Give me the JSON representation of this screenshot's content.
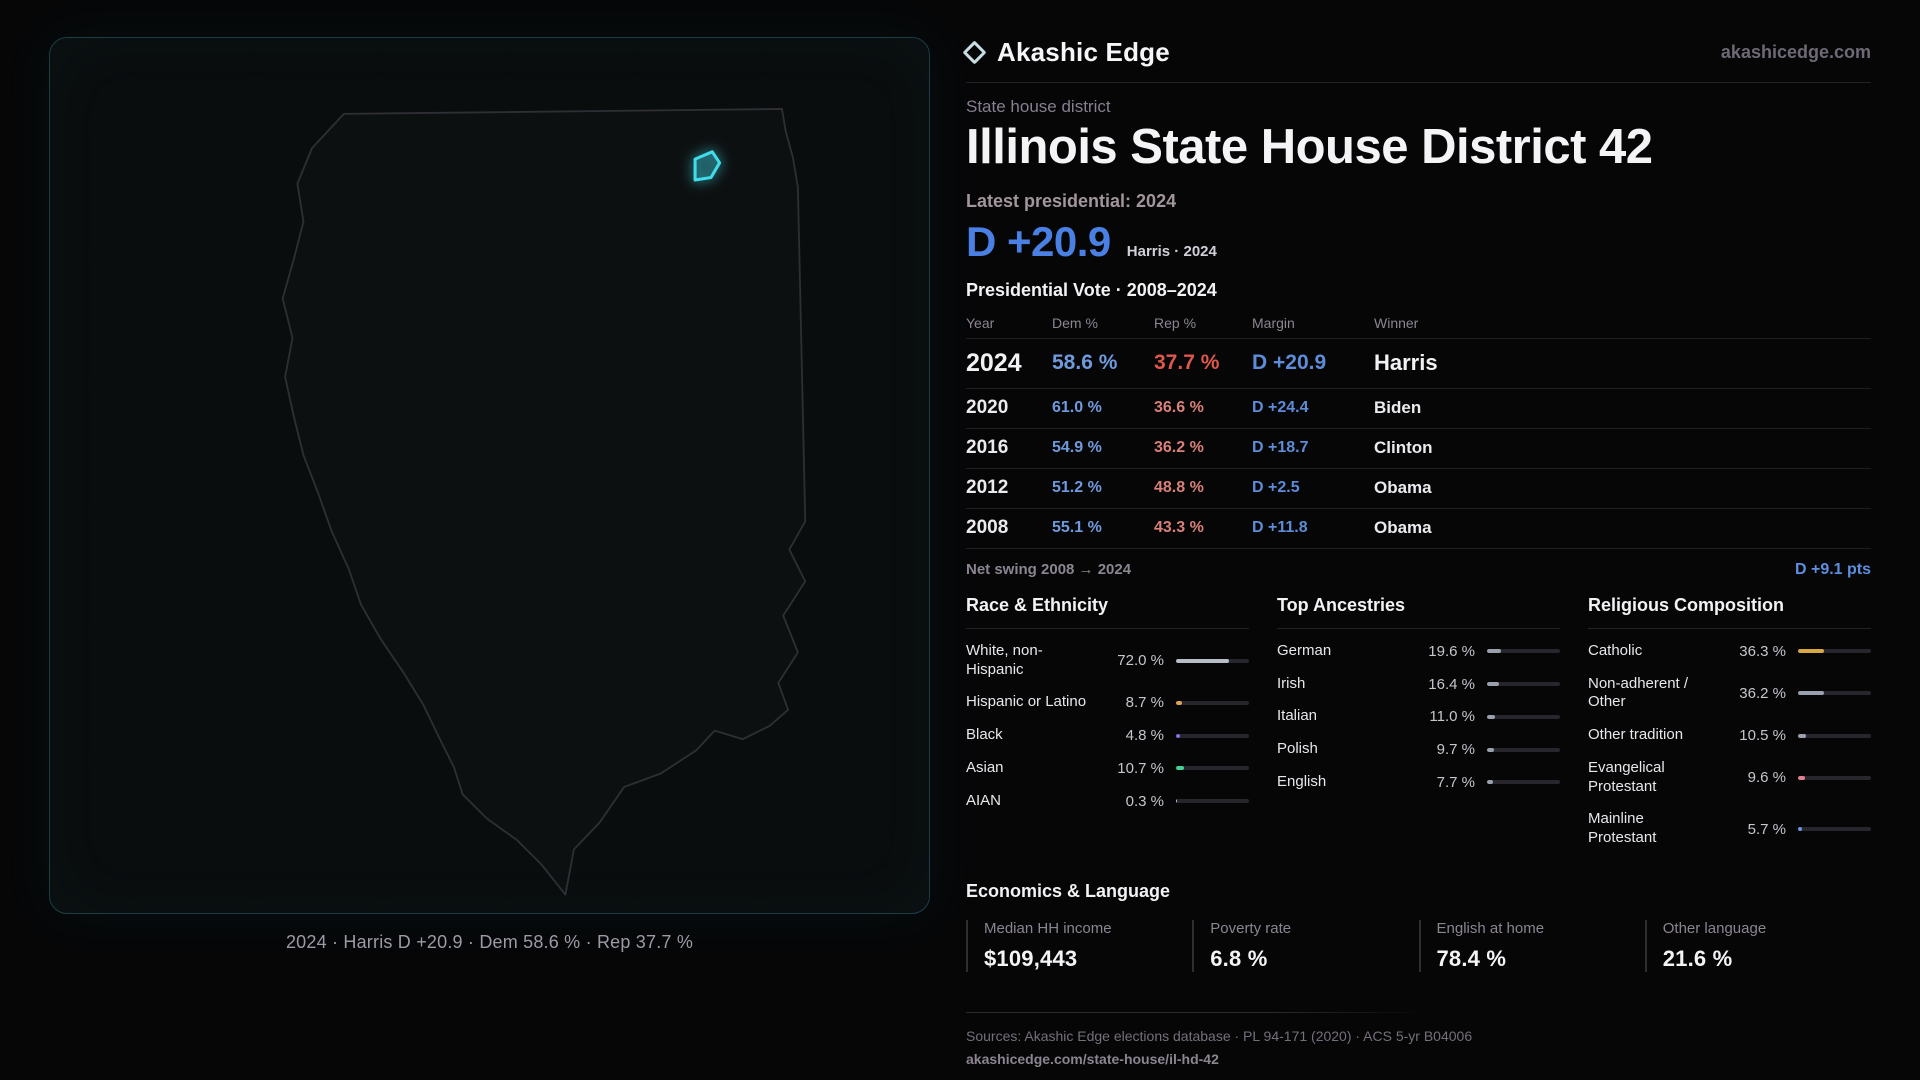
{
  "brand": {
    "name": "Akashic Edge",
    "domain_link": "akashicedge.com"
  },
  "page": {
    "kicker": "State house district",
    "title": "Illinois State House District 42",
    "latest_label": "Latest presidential: 2024",
    "headline": {
      "margin": "D +20.9",
      "sub": "Harris · 2024"
    }
  },
  "map": {
    "caption": "2024 · Harris D +20.9 · Dem 58.6 % · Rep 37.7 %"
  },
  "vote": {
    "title": "Presidential Vote · 2008–2024",
    "columns": {
      "year": "Year",
      "dem": "Dem %",
      "rep": "Rep %",
      "margin": "Margin",
      "winner": "Winner"
    },
    "rows": [
      {
        "year": "2024",
        "dem": "58.6 %",
        "rep": "37.7 %",
        "margin": "D +20.9",
        "winner": "Harris"
      },
      {
        "year": "2020",
        "dem": "61.0 %",
        "rep": "36.6 %",
        "margin": "D +24.4",
        "winner": "Biden"
      },
      {
        "year": "2016",
        "dem": "54.9 %",
        "rep": "36.2 %",
        "margin": "D +18.7",
        "winner": "Clinton"
      },
      {
        "year": "2012",
        "dem": "51.2 %",
        "rep": "48.8 %",
        "margin": "D +2.5",
        "winner": "Obama"
      },
      {
        "year": "2008",
        "dem": "55.1 %",
        "rep": "43.3 %",
        "margin": "D +11.8",
        "winner": "Obama"
      }
    ],
    "net_swing": {
      "label": "Net swing 2008 → 2024",
      "value": "D +9.1 pts"
    }
  },
  "demographics": {
    "race": {
      "title": "Race & Ethnicity",
      "rows": [
        {
          "label": "White, non-Hispanic",
          "value": "72.0 %",
          "pct": 72.0,
          "color": "#b9bdc8"
        },
        {
          "label": "Hispanic or Latino",
          "value": "8.7 %",
          "pct": 8.7,
          "color": "#e0a050"
        },
        {
          "label": "Black",
          "value": "4.8 %",
          "pct": 4.8,
          "color": "#7b74e8"
        },
        {
          "label": "Asian",
          "value": "10.7 %",
          "pct": 10.7,
          "color": "#3fd195"
        },
        {
          "label": "AIAN",
          "value": "0.3 %",
          "pct": 0.3,
          "color": "#b9bdc8"
        }
      ]
    },
    "ancestries": {
      "title": "Top Ancestries",
      "rows": [
        {
          "label": "German",
          "value": "19.6 %",
          "pct": 19.6,
          "color": "#9aa0ae"
        },
        {
          "label": "Irish",
          "value": "16.4 %",
          "pct": 16.4,
          "color": "#9aa0ae"
        },
        {
          "label": "Italian",
          "value": "11.0 %",
          "pct": 11.0,
          "color": "#9aa0ae"
        },
        {
          "label": "Polish",
          "value": "9.7 %",
          "pct": 9.7,
          "color": "#9aa0ae"
        },
        {
          "label": "English",
          "value": "7.7 %",
          "pct": 7.7,
          "color": "#9aa0ae"
        }
      ]
    },
    "religion": {
      "title": "Religious Composition",
      "rows": [
        {
          "label": "Catholic",
          "value": "36.3 %",
          "pct": 36.3,
          "color": "#d9a843"
        },
        {
          "label": "Non-adherent / Other",
          "value": "36.2 %",
          "pct": 36.2,
          "color": "#9aa0ae"
        },
        {
          "label": "Other tradition",
          "value": "10.5 %",
          "pct": 10.5,
          "color": "#9aa0ae"
        },
        {
          "label": "Evangelical Protestant",
          "value": "9.6 %",
          "pct": 9.6,
          "color": "#e5808f"
        },
        {
          "label": "Mainline Protestant",
          "value": "5.7 %",
          "pct": 5.7,
          "color": "#6b97e6"
        }
      ]
    }
  },
  "economics": {
    "title": "Economics & Language",
    "stats": [
      {
        "label": "Median HH income",
        "value": "$109,443"
      },
      {
        "label": "Poverty rate",
        "value": "6.8 %"
      },
      {
        "label": "English at home",
        "value": "78.4 %"
      },
      {
        "label": "Other language",
        "value": "21.6 %"
      }
    ]
  },
  "footer": {
    "sources": "Sources: Akashic Edge elections database · PL 94-171 (2020) · ACS 5-yr B04006",
    "permalink": "akashicedge.com/state-house/il-hd-42"
  },
  "colors": {
    "dem_blue": "#4a80e4",
    "rep_red": "#e0574b",
    "accent_cyan": "#3fdcea",
    "gold": "#d9a843"
  }
}
